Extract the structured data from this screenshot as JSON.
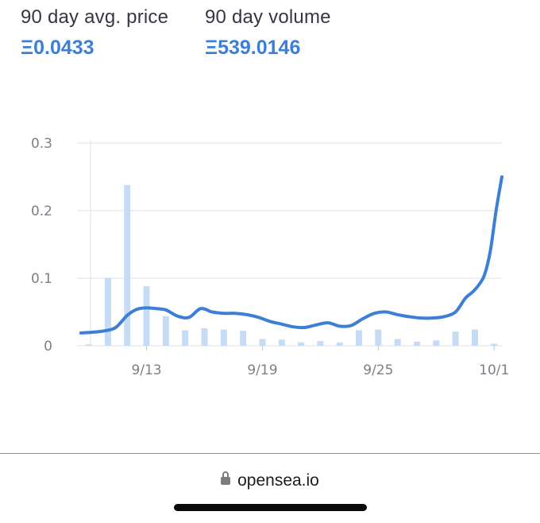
{
  "stats": {
    "avg_price": {
      "label": "90 day avg. price",
      "value": "Ξ0.0433"
    },
    "volume": {
      "label": "90 day volume",
      "value": "Ξ539.0146"
    }
  },
  "colors": {
    "accent": "#3b7fd6",
    "bar": "#c5dcf4",
    "line": "#3d7fd4",
    "grid": "#e4e6ea"
  },
  "chart_data": {
    "type": "bar+line",
    "title": "",
    "xlabel": "",
    "ylabel": "",
    "ylim": [
      0,
      0.3
    ],
    "yticks": [
      0,
      0.1,
      0.2,
      0.3
    ],
    "ytick_labels": [
      "0",
      "0.1",
      "0.2",
      "0.3"
    ],
    "xticks": [
      {
        "day": 13,
        "label": "9/13"
      },
      {
        "day": 19,
        "label": "9/19"
      },
      {
        "day": 25,
        "label": "9/25"
      },
      {
        "day": 31,
        "label": "10/1"
      }
    ],
    "x_start": 9.4,
    "x_end": 31.4,
    "grid": "horizontal",
    "volume_bars": {
      "days": [
        10,
        11,
        12,
        13,
        14,
        15,
        16,
        17,
        18,
        19,
        20,
        21,
        22,
        23,
        24,
        25,
        26,
        27,
        28,
        29,
        30,
        31
      ],
      "values": [
        0.002,
        0.1,
        0.238,
        0.088,
        0.044,
        0.023,
        0.026,
        0.024,
        0.022,
        0.01,
        0.009,
        0.005,
        0.007,
        0.005,
        0.023,
        0.024,
        0.01,
        0.006,
        0.008,
        0.021,
        0.024,
        0.003
      ]
    },
    "price_line": {
      "days": [
        9.6,
        10.2,
        10.8,
        11.4,
        12,
        12.5,
        13,
        13.5,
        14,
        14.6,
        15.2,
        15.8,
        16.4,
        17,
        17.6,
        18.2,
        18.8,
        19.4,
        20,
        20.6,
        21.2,
        21.8,
        22.4,
        23,
        23.6,
        24.2,
        24.8,
        25.4,
        26,
        26.6,
        27.2,
        27.8,
        28.4,
        29,
        29.5,
        29.9,
        30.2,
        30.5,
        30.8,
        31.1,
        31.4
      ],
      "values": [
        0.019,
        0.02,
        0.022,
        0.027,
        0.045,
        0.054,
        0.056,
        0.055,
        0.053,
        0.044,
        0.042,
        0.055,
        0.05,
        0.048,
        0.048,
        0.046,
        0.042,
        0.036,
        0.032,
        0.028,
        0.027,
        0.031,
        0.034,
        0.029,
        0.03,
        0.04,
        0.048,
        0.05,
        0.046,
        0.043,
        0.041,
        0.041,
        0.043,
        0.05,
        0.07,
        0.08,
        0.09,
        0.105,
        0.14,
        0.2,
        0.25
      ]
    }
  },
  "browser": {
    "url": "opensea.io"
  }
}
